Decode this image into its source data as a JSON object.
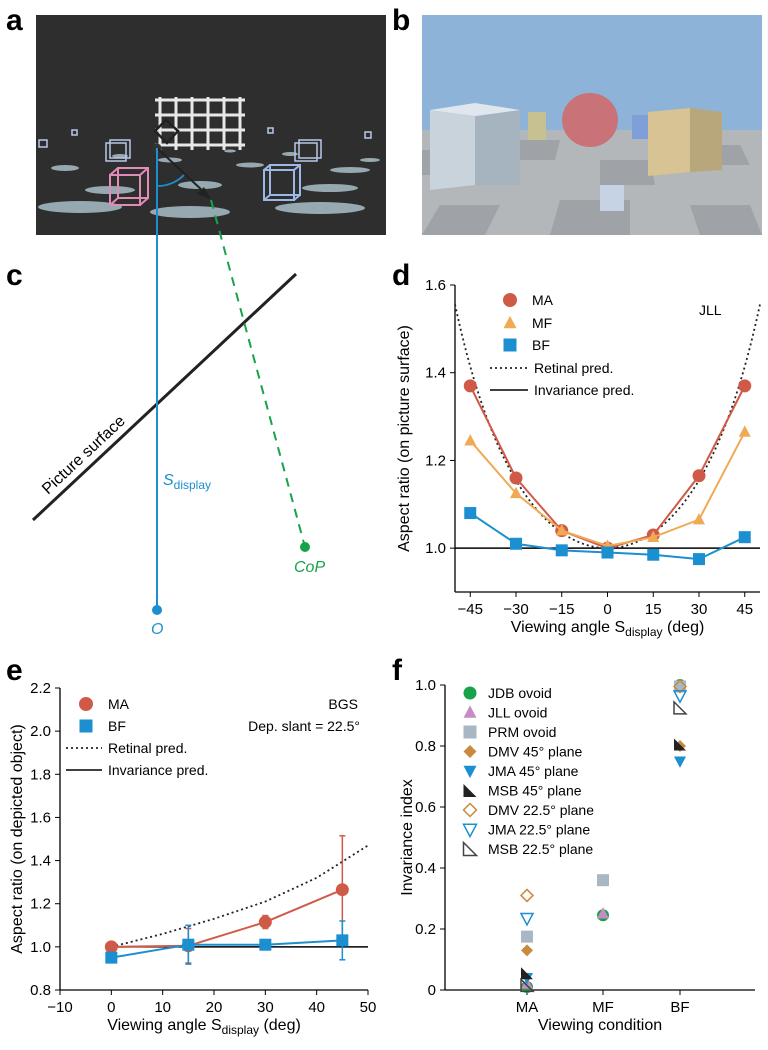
{
  "panel_labels": [
    "a",
    "b",
    "c",
    "d",
    "e",
    "f"
  ],
  "photo_a": {
    "description_icon": "wireframe-cubes-scene",
    "bg": "#2e2e2e"
  },
  "photo_b": {
    "description_icon": "boxes-sphere-scene",
    "bg": "#8eb3d8"
  },
  "diagram_c": {
    "surface_label": "Picture surface",
    "angle_label": "S",
    "angle_sub": "display",
    "cop_label": "CoP",
    "o_label": "O",
    "colors": {
      "blue": "#1b8fd0",
      "green": "#16a34a",
      "black": "#222222"
    }
  },
  "chart_data": [
    {
      "id": "d",
      "type": "line",
      "annotation": "JLL",
      "xlabel": "Viewing angle S",
      "xlabel_sub": "display",
      "xlabel_unit": " (deg)",
      "ylabel": "Aspect ratio (on picture surface)",
      "xlim": [
        -50,
        50
      ],
      "ylim": [
        0.9,
        1.6
      ],
      "xticks": [
        "−45",
        "−30",
        "−15",
        "0",
        "15",
        "30",
        "45"
      ],
      "xtick_values": [
        -45,
        -30,
        -15,
        0,
        15,
        30,
        45
      ],
      "yticks": [
        "1.0",
        "1.2",
        "1.4",
        "1.6"
      ],
      "ytick_values": [
        1.0,
        1.2,
        1.4,
        1.6
      ],
      "x": [
        -45,
        -30,
        -15,
        0,
        15,
        30,
        45
      ],
      "series": [
        {
          "name": "MA",
          "marker": "circle",
          "color": "#d05a48",
          "values": [
            1.37,
            1.16,
            1.04,
            1.0,
            1.03,
            1.165,
            1.37
          ]
        },
        {
          "name": "MF",
          "marker": "triangle",
          "color": "#f0aa55",
          "values": [
            1.245,
            1.125,
            1.04,
            1.005,
            1.025,
            1.065,
            1.265
          ]
        },
        {
          "name": "BF",
          "marker": "square",
          "color": "#1b8fd0",
          "values": [
            1.08,
            1.01,
            0.995,
            0.99,
            0.985,
            0.975,
            1.025
          ]
        }
      ],
      "legend": [
        "MA",
        "MF",
        "BF",
        "Retinal pred.",
        "Invariance pred."
      ],
      "reference": {
        "retinal": "1/cos(x)",
        "invariance": 1.0
      }
    },
    {
      "id": "e",
      "type": "line",
      "annotation": "BGS",
      "annotation2": "Dep. slant = 22.5°",
      "xlabel": "Viewing angle S",
      "xlabel_sub": "display",
      "xlabel_unit": " (deg)",
      "ylabel": "Aspect ratio (on depicted object)",
      "xlim": [
        -10,
        50
      ],
      "ylim": [
        0.8,
        2.2
      ],
      "xticks": [
        "−10",
        "0",
        "10",
        "20",
        "30",
        "40",
        "50"
      ],
      "xtick_values": [
        -10,
        0,
        10,
        20,
        30,
        40,
        50
      ],
      "yticks": [
        "0.8",
        "1.0",
        "1.2",
        "1.4",
        "1.6",
        "1.8",
        "2.0",
        "2.2"
      ],
      "ytick_values": [
        0.8,
        1.0,
        1.2,
        1.4,
        1.6,
        1.8,
        2.0,
        2.2
      ],
      "x": [
        0,
        15,
        30,
        45
      ],
      "series": [
        {
          "name": "MA",
          "marker": "circle",
          "color": "#d05a48",
          "values": [
            1.0,
            1.005,
            1.115,
            1.265
          ],
          "err": [
            0.0,
            0.08,
            0.03,
            0.25
          ]
        },
        {
          "name": "BF",
          "marker": "square",
          "color": "#1b8fd0",
          "values": [
            0.95,
            1.01,
            1.01,
            1.03
          ],
          "err": [
            0.0,
            0.09,
            0.0,
            0.09
          ]
        }
      ],
      "legend": [
        "MA",
        "BF",
        "Retinal pred.",
        "Invariance pred."
      ],
      "retinal_curve": {
        "x": [
          0,
          10,
          20,
          30,
          40,
          50
        ],
        "y": [
          1.0,
          1.06,
          1.13,
          1.21,
          1.32,
          1.47
        ]
      },
      "invariance": 1.0
    },
    {
      "id": "f",
      "type": "scatter",
      "xlabel": "Viewing condition",
      "ylabel": "Invariance index",
      "categories": [
        "MA",
        "MF",
        "BF"
      ],
      "ylim": [
        0,
        1.0
      ],
      "yticks": [
        "0",
        "0.2",
        "0.4",
        "0.6",
        "0.8",
        "1.0"
      ],
      "ytick_values": [
        0,
        0.2,
        0.4,
        0.6,
        0.8,
        1.0
      ],
      "series": [
        {
          "name": "JDB ovoid",
          "marker": "circle",
          "color": "#16a34a",
          "values": [
            0.01,
            0.245,
            1.0
          ]
        },
        {
          "name": "JLL ovoid",
          "marker": "triangle",
          "color": "#c98bc4",
          "values": [
            0.02,
            0.25,
            1.0
          ]
        },
        {
          "name": "PRM ovoid",
          "marker": "square",
          "color": "#a9b6c4",
          "values": [
            0.175,
            0.36,
            0.995
          ]
        },
        {
          "name": "DMV 45° plane",
          "marker": "diamond",
          "color": "#c98a3e",
          "values": [
            0.13,
            null,
            0.8
          ]
        },
        {
          "name": "JMA 45° plane",
          "marker": "triangle-down",
          "color": "#1b8fd0",
          "values": [
            0.04,
            null,
            0.75
          ]
        },
        {
          "name": "MSB 45° plane",
          "marker": "right-triangle",
          "color": "#222222",
          "values": [
            0.055,
            null,
            0.805
          ]
        },
        {
          "name": "DMV 22.5° plane",
          "marker": "diamond-open",
          "color": "#c98a3e",
          "values": [
            0.31,
            null,
            0.995
          ]
        },
        {
          "name": "JMA 22.5° plane",
          "marker": "triangle-down-open",
          "color": "#1b8fd0",
          "values": [
            0.235,
            null,
            0.965
          ]
        },
        {
          "name": "MSB 22.5° plane",
          "marker": "right-triangle-open",
          "color": "#444444",
          "values": [
            0.015,
            null,
            0.925
          ]
        }
      ]
    }
  ]
}
